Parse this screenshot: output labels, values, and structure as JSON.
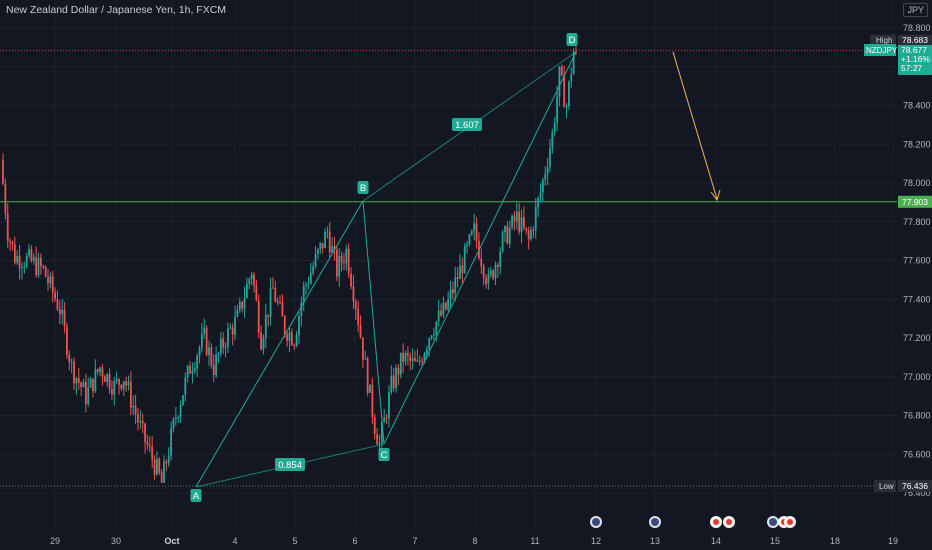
{
  "header": {
    "title": "New Zealand Dollar / Japanese Yen, 1h, FXCM",
    "currency": "JPY"
  },
  "price_axis": {
    "ticks": [
      "78.800",
      "78.600",
      "78.400",
      "78.200",
      "78.000",
      "77.800",
      "77.600",
      "77.400",
      "77.200",
      "77.000",
      "76.800",
      "76.600",
      "76.400"
    ]
  },
  "time_axis": {
    "ticks": [
      "29",
      "30",
      "Oct",
      "4",
      "5",
      "6",
      "7",
      "8",
      "11",
      "12",
      "13",
      "14",
      "15",
      "18",
      "19"
    ]
  },
  "markers": {
    "high_label": "High",
    "high_value": "78.683",
    "low_label": "Low",
    "low_value": "76.436",
    "symbol": "NZDJPY",
    "last_price": "78.677",
    "change": "+1.16%",
    "countdown": "57:27",
    "level_price": "77.903"
  },
  "pattern": {
    "points": [
      {
        "label": "A",
        "date": "Oct 3",
        "price": 76.44
      },
      {
        "label": "B",
        "date": "Oct 6",
        "price": 77.91
      },
      {
        "label": "C",
        "date": "Oct 6-7",
        "price": 76.65
      },
      {
        "label": "D",
        "date": "Oct 11",
        "price": 78.68
      }
    ],
    "ratio_ac": "0.854",
    "ratio_bd": "1.607"
  },
  "colors": {
    "background": "#131722",
    "up": "#26a69a",
    "down": "#ef5350",
    "pattern": "#22ab94",
    "level": "#4caf50",
    "arrow": "#f0b35a",
    "axis_text": "#b2b5be"
  },
  "chart_data": {
    "type": "candlestick",
    "title": "New Zealand Dollar / Japanese Yen, 1h, FXCM",
    "ylim": [
      76.36,
      78.86
    ],
    "horizontal_level": 77.903,
    "high": 78.683,
    "low": 76.436,
    "last": 78.677,
    "swing_path": [
      [
        0,
        78.12
      ],
      [
        3,
        77.75
      ],
      [
        6,
        77.62
      ],
      [
        12,
        77.6
      ],
      [
        18,
        77.55
      ],
      [
        25,
        77.35
      ],
      [
        30,
        77.05
      ],
      [
        36,
        76.9
      ],
      [
        42,
        77.05
      ],
      [
        48,
        76.95
      ],
      [
        52,
        77.0
      ],
      [
        56,
        76.85
      ],
      [
        60,
        76.7
      ],
      [
        65,
        76.55
      ],
      [
        68,
        76.45
      ],
      [
        74,
        76.8
      ],
      [
        80,
        77.05
      ],
      [
        86,
        77.2
      ],
      [
        90,
        77.05
      ],
      [
        95,
        77.2
      ],
      [
        100,
        77.3
      ],
      [
        106,
        77.55
      ],
      [
        110,
        77.2
      ],
      [
        115,
        77.45
      ],
      [
        120,
        77.25
      ],
      [
        124,
        77.2
      ],
      [
        128,
        77.45
      ],
      [
        133,
        77.6
      ],
      [
        138,
        77.75
      ],
      [
        142,
        77.55
      ],
      [
        146,
        77.65
      ],
      [
        150,
        77.38
      ],
      [
        154,
        77.05
      ],
      [
        158,
        76.75
      ],
      [
        160,
        76.65
      ],
      [
        165,
        76.95
      ],
      [
        170,
        77.1
      ],
      [
        176,
        77.05
      ],
      [
        182,
        77.25
      ],
      [
        188,
        77.35
      ],
      [
        194,
        77.55
      ],
      [
        200,
        77.75
      ],
      [
        206,
        77.48
      ],
      [
        212,
        77.7
      ],
      [
        218,
        77.82
      ],
      [
        223,
        77.7
      ],
      [
        228,
        77.95
      ],
      [
        233,
        78.25
      ],
      [
        236,
        78.55
      ],
      [
        239,
        78.4
      ],
      [
        242,
        78.68
      ]
    ]
  }
}
